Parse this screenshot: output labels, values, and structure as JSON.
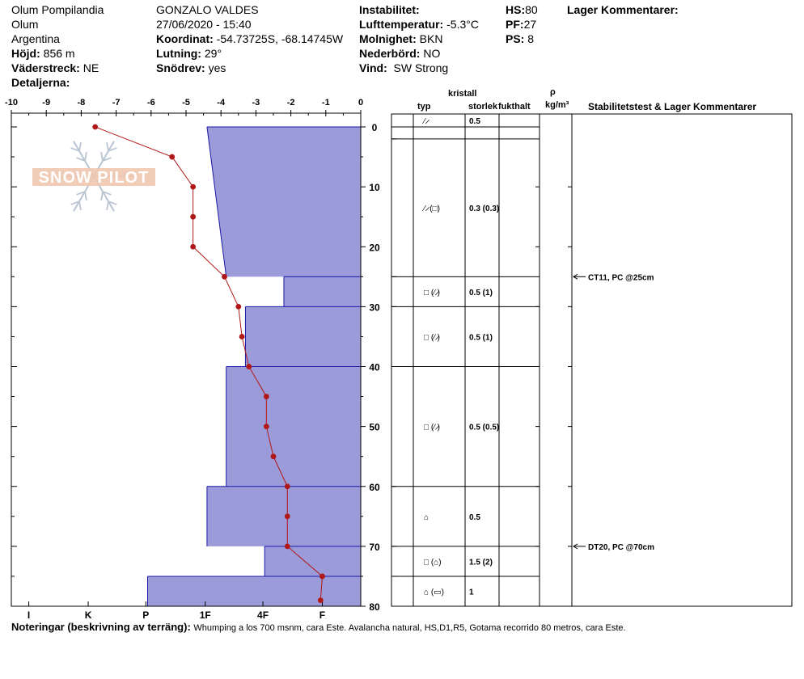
{
  "header": {
    "location": "Olum Pompilandia",
    "region": "Olum",
    "country": "Argentina",
    "elevation_label": "Höjd:",
    "elevation_value": "856 m",
    "aspect_label": "Väderstreck:",
    "aspect_value": "NE",
    "details_label": "Detaljerna:",
    "observer": "GONZALO VALDES",
    "datetime": "27/06/2020 - 15:40",
    "coord_label": "Koordinat:",
    "coord_value": "-54.73725S, -68.14745W",
    "slope_label": "Lutning:",
    "slope_value": "29°",
    "drift_label": "Snödrev:",
    "drift_value": "yes",
    "instability_label": "Instabilitet:",
    "airtemp_label": "Lufttemperatur:",
    "airtemp_value": "-5.3°C",
    "sky_label": "Molnighet:",
    "sky_value": "BKN",
    "precip_label": "Nederbörd:",
    "precip_value": "NO",
    "wind_label": "Vind:",
    "wind_value": "SW Strong",
    "hs_label": "HS:",
    "hs_value": "80",
    "pf_label": "PF:",
    "pf_value": "27",
    "ps_label": "PS:",
    "ps_value": "8",
    "layer_comments_label": "Lager Kommentarer:"
  },
  "columns": {
    "crystal": "kristall",
    "type": "typ",
    "size": "storlek",
    "moisture": "fukthalt",
    "rho": "ρ",
    "density_unit": "kg/m³",
    "stability": "Stabilitetstest & Lager Kommentarer"
  },
  "watermark": "SNOW PILOT",
  "notes_label": "Noteringar (beskrivning av terräng):",
  "notes_text": "Whumping a los 700 msnm, cara Este. Avalancha natural, HS,D1,R5, Gotama recorrido 80 metros, cara Este.",
  "chart_data": {
    "type": "snow-profile",
    "temperature_axis": {
      "range": [
        -10,
        0
      ],
      "ticks": [
        "-10",
        "-9",
        "-8",
        "-7",
        "-6",
        "-5",
        "-4",
        "-3",
        "-2",
        "-1",
        "0"
      ]
    },
    "depth_axis": {
      "range": [
        0,
        80
      ],
      "ticks": [
        "0",
        "10",
        "20",
        "30",
        "40",
        "50",
        "60",
        "70",
        "80"
      ]
    },
    "hardness_axis": {
      "ticks": [
        "I",
        "K",
        "P",
        "1F",
        "4F",
        "F"
      ],
      "values": [
        -9.5,
        -7.8,
        -6.15,
        -4.45,
        -2.8,
        -1.1
      ]
    },
    "temperature_series": [
      {
        "depth": 0,
        "temp": -7.6
      },
      {
        "depth": 5,
        "temp": -5.4
      },
      {
        "depth": 10,
        "temp": -4.8
      },
      {
        "depth": 15,
        "temp": -4.8
      },
      {
        "depth": 20,
        "temp": -4.8
      },
      {
        "depth": 25,
        "temp": -3.9
      },
      {
        "depth": 30,
        "temp": -3.5
      },
      {
        "depth": 35,
        "temp": -3.4
      },
      {
        "depth": 40,
        "temp": -3.2
      },
      {
        "depth": 45,
        "temp": -2.7
      },
      {
        "depth": 50,
        "temp": -2.7
      },
      {
        "depth": 55,
        "temp": -2.5
      },
      {
        "depth": 60,
        "temp": -2.1
      },
      {
        "depth": 65,
        "temp": -2.1
      },
      {
        "depth": 70,
        "temp": -2.1
      },
      {
        "depth": 75,
        "temp": -1.1
      },
      {
        "depth": 79,
        "temp": -1.15
      }
    ],
    "hardness_profile": [
      {
        "top": 0,
        "bottom": 25,
        "hardness_top": -4.4,
        "hardness_bottom": -3.85
      },
      {
        "top": 25,
        "bottom": 30,
        "hardness_top": -2.2,
        "hardness_bottom": -2.2
      },
      {
        "top": 30,
        "bottom": 40,
        "hardness_top": -3.3,
        "hardness_bottom": -3.3
      },
      {
        "top": 40,
        "bottom": 60,
        "hardness_top": -3.85,
        "hardness_bottom": -3.85
      },
      {
        "top": 60,
        "bottom": 70,
        "hardness_top": -4.4,
        "hardness_bottom": -4.4
      },
      {
        "top": 70,
        "bottom": 75,
        "hardness_top": -2.75,
        "hardness_bottom": -2.75
      },
      {
        "top": 75,
        "bottom": 80,
        "hardness_top": -6.1,
        "hardness_bottom": -6.1
      }
    ],
    "layers": [
      {
        "top": 0,
        "bottom": 2,
        "type": "⁄ ̷",
        "size": "0.5"
      },
      {
        "top": 2,
        "bottom": 25,
        "type": "⁄ ̷ (□)",
        "size": "0.3 (0.3)"
      },
      {
        "top": 25,
        "bottom": 30,
        "type": "□ (⁄ ̷)",
        "size": "0.5 (1)"
      },
      {
        "top": 30,
        "bottom": 40,
        "type": "□ (⁄ ̷)",
        "size": "0.5 (1)"
      },
      {
        "top": 40,
        "bottom": 60,
        "type": "□ (⁄ ̷)",
        "size": "0.5 (0.5)"
      },
      {
        "top": 60,
        "bottom": 70,
        "type": "⌂",
        "size": "0.5"
      },
      {
        "top": 70,
        "bottom": 75,
        "type": "□ (⌂)",
        "size": "1.5 (2)"
      },
      {
        "top": 75,
        "bottom": 80,
        "type": "⌂ (▭)",
        "size": "1"
      }
    ],
    "stability_tests": [
      {
        "depth": 25,
        "label": "CT11, PC @25cm"
      },
      {
        "depth": 70,
        "label": "DT20, PC @70cm"
      }
    ],
    "colors": {
      "hardness_fill": "#9b9bd9",
      "hardness_stroke": "#1a1aa6",
      "temperature": "#b01818"
    }
  }
}
